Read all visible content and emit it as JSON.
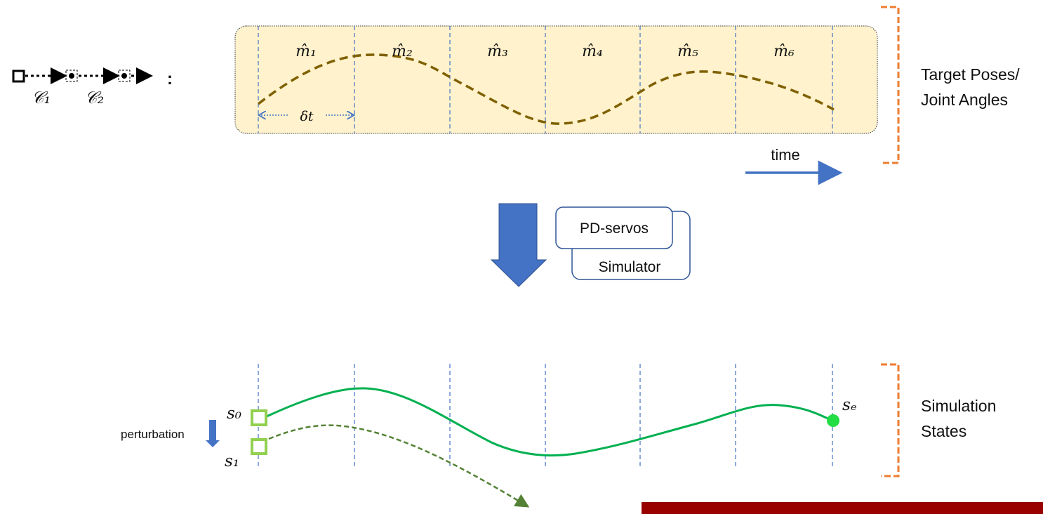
{
  "chain": {
    "c1": "𝒞₁",
    "c2": "𝒞₂",
    "colon": ":"
  },
  "top": {
    "segments": [
      "m̂₁",
      "m̂₂",
      "m̂₃",
      "m̂₄",
      "m̂₅",
      "m̂₆"
    ],
    "delta_t": "δt",
    "time_label": "time",
    "side_label_line1": "Target Poses/",
    "side_label_line2": "Joint Angles"
  },
  "middle": {
    "pd_servos": "PD-servos",
    "simulator": "Simulator"
  },
  "bottom": {
    "s0": "s₀",
    "s1": "s₁",
    "se": "sₑ",
    "perturbation": "perturbation",
    "side_label_line1": "Simulation",
    "side_label_line2": "States"
  },
  "colors": {
    "box_fill": "#FFF2CC",
    "target_curve": "#7F6000",
    "accent_blue": "#4472C4",
    "sim_curve": "#00B050",
    "perturbed_curve": "#548235",
    "start_square": "#92D050",
    "bracket": "#ED7D31",
    "bar": "#990000"
  }
}
